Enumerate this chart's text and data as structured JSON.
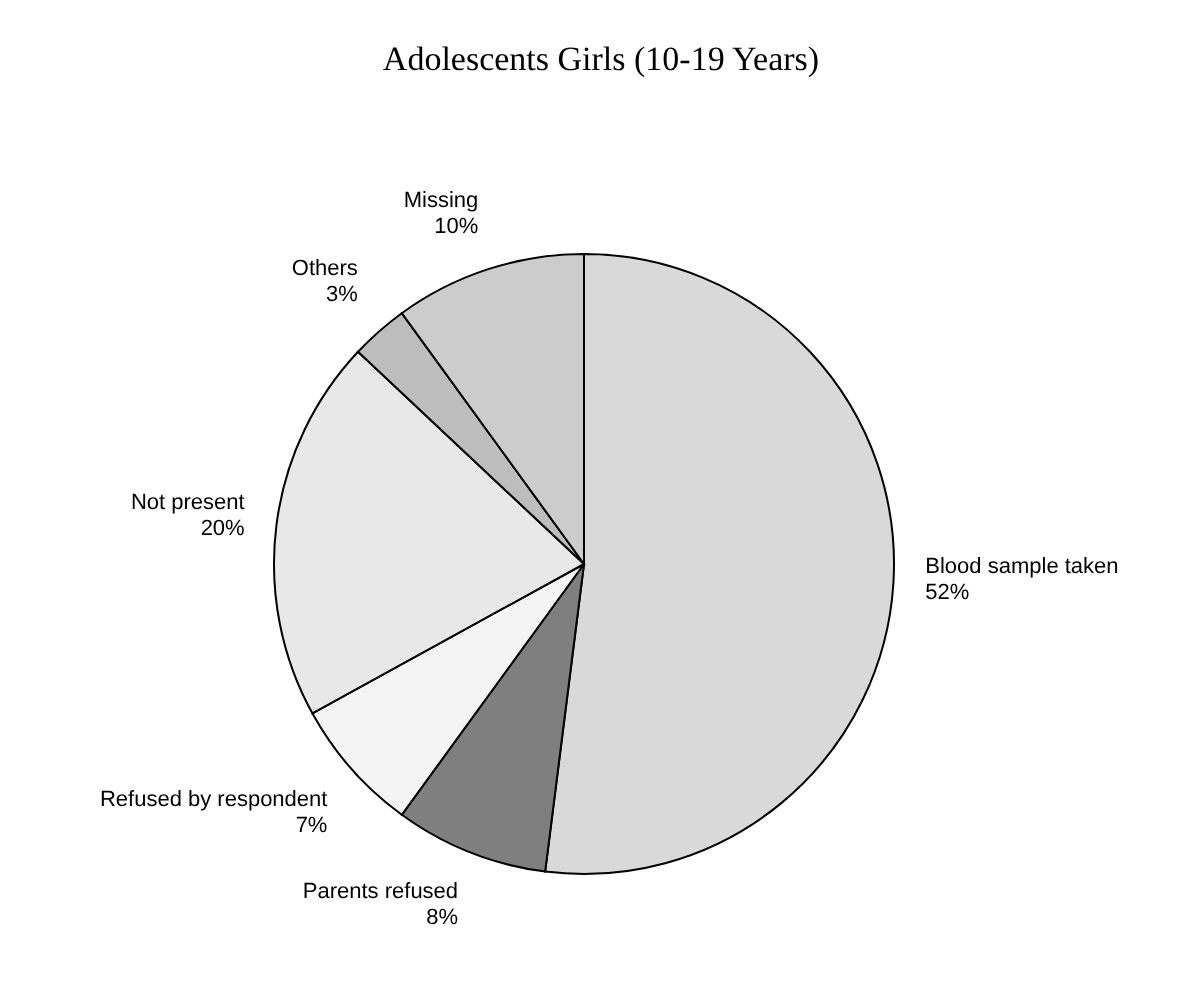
{
  "chart_data": {
    "type": "pie",
    "title": "Adolescents Girls (10-19 Years)",
    "categories": [
      "Blood sample taken",
      "Parents refused",
      "Refused by respondent",
      "Not present",
      "Others",
      "Missing"
    ],
    "values": [
      52,
      8,
      7,
      20,
      3,
      10
    ],
    "value_labels": [
      "52%",
      "8%",
      "7%",
      "20%",
      "3%",
      "10%"
    ],
    "colors": [
      "#d9d9d9",
      "#7f7f7f",
      "#f4f4f4",
      "#e8e8e8",
      "#bdbdbd",
      "#cccccc"
    ],
    "legend": false
  }
}
